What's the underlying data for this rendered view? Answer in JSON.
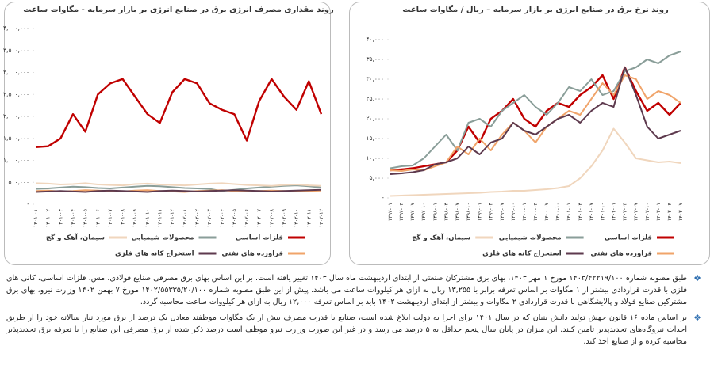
{
  "chart_data": [
    {
      "type": "line",
      "title": "روند مقداری مصرف انرژی برق در صنایع انرژی بر بازار سرمایه - مگاوات ساعت",
      "categories": [
        "۱۴۰۱-۰۱",
        "۱۴۰۱-۰۲",
        "۱۴۰۱-۰۳",
        "۱۴۰۱-۰۴",
        "۱۴۰۱-۰۵",
        "۱۴۰۱-۰۶",
        "۱۴۰۱-۰۷",
        "۱۴۰۱-۰۸",
        "۱۴۰۱-۰۹",
        "۱۴۰۱-۱۰",
        "۱۴۰۱-۱۱",
        "۱۴۰۱-۱۲",
        "۱۴۰۲-۰۱",
        "۱۴۰۲-۰۲",
        "۱۴۰۲-۰۳",
        "۱۴۰۲-۰۴",
        "۱۴۰۲-۰۵",
        "۱۴۰۲-۰۶",
        "۱۴۰۲-۰۷",
        "۱۴۰۲-۰۸",
        "۱۴۰۲-۰۹",
        "۱۴۰۲-۱۰",
        "۱۴۰۲-۱۱",
        "۱۴۰۲-۱۲"
      ],
      "series": [
        {
          "name": "فلزات اساسی",
          "color": "#c00000",
          "values": [
            1300000,
            1320000,
            1500000,
            2050000,
            1650000,
            2500000,
            2750000,
            2850000,
            2450000,
            2050000,
            1850000,
            2550000,
            2850000,
            2750000,
            2300000,
            2150000,
            2050000,
            1450000,
            2350000,
            2850000,
            2450000,
            2150000,
            2800000,
            2050000
          ]
        },
        {
          "name": "محصولات شیمیایی",
          "color": "#8a9e99",
          "values": [
            350000,
            360000,
            380000,
            400000,
            390000,
            370000,
            360000,
            380000,
            400000,
            420000,
            410000,
            390000,
            370000,
            360000,
            350000,
            300000,
            330000,
            360000,
            380000,
            400000,
            420000,
            430000,
            410000,
            380000
          ]
        },
        {
          "name": "سیمان، آهک و گچ",
          "color": "#f0d6bd",
          "values": [
            480000,
            470000,
            450000,
            460000,
            480000,
            450000,
            440000,
            430000,
            460000,
            470000,
            450000,
            440000,
            430000,
            450000,
            470000,
            480000,
            460000,
            440000,
            430000,
            420000,
            440000,
            450000,
            430000,
            420000
          ]
        },
        {
          "name": "فراورده هاي نفتي",
          "color": "#f0a46a",
          "values": [
            300000,
            310000,
            290000,
            300000,
            320000,
            310000,
            300000,
            290000,
            310000,
            320000,
            300000,
            290000,
            280000,
            300000,
            310000,
            320000,
            300000,
            290000,
            300000,
            310000,
            300000,
            290000,
            300000,
            310000
          ]
        },
        {
          "name": "استخراج کانه هاي فلزي",
          "color": "#5e3a4e",
          "values": [
            280000,
            290000,
            300000,
            290000,
            280000,
            300000,
            310000,
            300000,
            290000,
            280000,
            300000,
            310000,
            300000,
            290000,
            300000,
            310000,
            320000,
            310000,
            300000,
            290000,
            300000,
            310000,
            320000,
            330000
          ]
        }
      ],
      "ylim": [
        0,
        4000000
      ],
      "yticks": [
        {
          "value": 0,
          "label": "-"
        },
        {
          "value": 500000,
          "label": "۵۰۰,۰۰۰"
        },
        {
          "value": 1000000,
          "label": "۱,۰۰۰,۰۰۰"
        },
        {
          "value": 1500000,
          "label": "۱,۵۰۰,۰۰۰"
        },
        {
          "value": 2000000,
          "label": "۲,۰۰۰,۰۰۰"
        },
        {
          "value": 2500000,
          "label": "۲,۵۰۰,۰۰۰"
        },
        {
          "value": 3000000,
          "label": "۳,۰۰۰,۰۰۰"
        },
        {
          "value": 3500000,
          "label": "۳,۵۰۰,۰۰۰"
        },
        {
          "value": 4000000,
          "label": "۴,۰۰۰,۰۰۰"
        }
      ]
    },
    {
      "type": "line",
      "title": "روند نرخ برق در صنایع انرژی بر بازار سرمایه – ریال / مگاوات ساعت",
      "categories": [
        "۱۳۹۷-۰۱",
        "۱۳۹۷-۰۴",
        "۱۳۹۷-۰۷",
        "۱۳۹۷-۱۰",
        "۱۳۹۸-۰۱",
        "۱۳۹۸-۰۴",
        "۱۳۹۸-۰۷",
        "۱۳۹۸-۱۰",
        "۱۳۹۹-۰۱",
        "۱۳۹۹-۰۴",
        "۱۳۹۹-۰۷",
        "۱۳۹۹-۱۰",
        "۱۴۰۰-۰۱",
        "۱۴۰۰-۰۴",
        "۱۴۰۰-۰۷",
        "۱۴۰۰-۱۰",
        "۱۴۰۱-۰۱",
        "۱۴۰۱-۰۴",
        "۱۴۰۱-۰۷",
        "۱۴۰۱-۱۰",
        "۱۴۰۲-۰۱",
        "۱۴۰۲-۰۴",
        "۱۴۰۲-۰۷",
        "۱۴۰۲-۱۰",
        "۱۴۰۳-۰۱",
        "۱۴۰۳-۰۴",
        "۱۴۰۳-۰۷"
      ],
      "series": [
        {
          "name": "فلزات اساسی",
          "color": "#c00000",
          "values": [
            7000,
            7200,
            7500,
            8000,
            8500,
            9000,
            12000,
            18000,
            14000,
            20000,
            22000,
            25000,
            20000,
            18000,
            22000,
            24000,
            23000,
            26000,
            28000,
            31000,
            25000,
            33000,
            27000,
            22000,
            24000,
            21000,
            24000
          ]
        },
        {
          "name": "محصولات شیمیایی",
          "color": "#8a9e99",
          "values": [
            7500,
            8000,
            8200,
            10000,
            13000,
            16000,
            12000,
            19000,
            20000,
            18000,
            22000,
            24000,
            26000,
            23000,
            21000,
            24000,
            28000,
            27000,
            30000,
            26000,
            27000,
            32000,
            33000,
            35000,
            34000,
            36000,
            37000
          ]
        },
        {
          "name": "سیمان، آهک و گچ",
          "color": "#f0d6bd",
          "values": [
            500,
            600,
            700,
            800,
            900,
            1000,
            1100,
            1200,
            1300,
            1500,
            1600,
            1800,
            1800,
            2000,
            2200,
            2500,
            3000,
            5000,
            8000,
            12000,
            17500,
            14000,
            10000,
            9500,
            9000,
            9200,
            8800
          ]
        },
        {
          "name": "فراورده هاي نفتي",
          "color": "#f0a46a",
          "values": [
            7000,
            6800,
            7200,
            7000,
            8000,
            9000,
            13000,
            11000,
            15000,
            12000,
            16000,
            19000,
            17000,
            14000,
            18000,
            20000,
            22000,
            21000,
            25000,
            29000,
            26000,
            31000,
            30000,
            25000,
            27000,
            26000,
            24000
          ]
        },
        {
          "name": "استخراج کانه هاي فلزي",
          "color": "#5e3a4e",
          "values": [
            6000,
            6200,
            6500,
            7000,
            8500,
            9000,
            10000,
            13000,
            11000,
            14000,
            15000,
            19000,
            17000,
            16000,
            18000,
            20000,
            21000,
            19000,
            22000,
            24000,
            23000,
            33000,
            26000,
            18000,
            15000,
            16000,
            17000
          ]
        }
      ],
      "ylim": [
        0,
        40000
      ],
      "yticks": [
        {
          "value": 0,
          "label": "-"
        },
        {
          "value": 5000,
          "label": "۵,۰۰۰"
        },
        {
          "value": 10000,
          "label": "۱۰,۰۰۰"
        },
        {
          "value": 15000,
          "label": "۱۵,۰۰۰"
        },
        {
          "value": 20000,
          "label": "۲۰,۰۰۰"
        },
        {
          "value": 25000,
          "label": "۲۵,۰۰۰"
        },
        {
          "value": 30000,
          "label": "۳۰,۰۰۰"
        },
        {
          "value": 35000,
          "label": "۳۵,۰۰۰"
        },
        {
          "value": 40000,
          "label": "۴۰,۰۰۰"
        }
      ]
    }
  ],
  "notes": [
    "طبق مصوبه شماره ۱۴۰۳/۴۲۲۱۹/۱۰۰ مورخ ۱ مهر ۱۴۰۳، بهای برق مشترکان صنعتی از ابتدای اردیبهشت ماه سال ۱۴۰۳ تغییر یافته است. بر این اساس بهای برق مصرفی صنایع فولادی، مس، فلزات اساسی، کانی های فلزی با قدرت قراردادی بیشتر از ۱ مگاوات بر اساس تعرفه برابر با ۱۳,۲۵۵ ریال به ازای هر کیلووات ساعت می باشد. پیش از این طبق مصوبه شماره ۱۴۰۲/۵۵۳۳۵/۲۰/۱۰۰ مورخ ۷ بهمن ۱۴۰۲ وزارت نیرو، بهای برق مشترکین صنایع فولاد و پالایشگاهی با قدرت قراردادی ۲ مگاوات و بیشتر از ابتدای اردیبهشت ۱۴۰۲ باید بر اساس تعرفه ۱۲,۰۰۰ ریال به ازای هر کیلووات ساعت محاسبه گردد.",
    "بر اساس ماده ۱۶ قانون جهش تولید دانش بنیان که در سال ۱۴۰۱ برای اجرا به دولت ابلاغ شده است، صنایع با قدرت مصرف بیش از یک مگاوات موظفند معادل یک درصد از برق مورد نیاز سالانه خود را از طریق احداث نیروگاه‌های تجدیدپذیر تامین کنند. این میزان در پایان سال پنجم حداقل به ۵ درصد می رسد و در غیر این صورت وزارت نیرو موظف است درصد ذکر شده از برق مصرفی این صنایع را با تعرفه برق تجدیدپذیر محاسبه کرده و از صنایع اخذ کند."
  ]
}
